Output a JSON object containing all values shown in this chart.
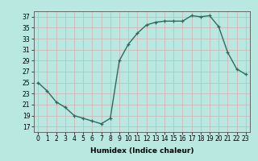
{
  "x": [
    0,
    1,
    2,
    3,
    4,
    5,
    6,
    7,
    8,
    9,
    10,
    11,
    12,
    13,
    14,
    15,
    16,
    17,
    18,
    19,
    20,
    21,
    22,
    23
  ],
  "y": [
    25,
    23.5,
    21.5,
    20.5,
    19.0,
    18.5,
    18.0,
    17.5,
    18.5,
    29,
    32,
    34,
    35.5,
    36,
    36.2,
    36.2,
    36.2,
    37.2,
    37.0,
    37.2,
    35.2,
    30.5,
    27.5,
    26.5
  ],
  "line_color": "#2e6b5e",
  "marker": "+",
  "marker_size": 3,
  "marker_linewidth": 0.9,
  "bg_color": "#b8e8e0",
  "grid_color": "#d0b8b8",
  "xlabel": "Humidex (Indice chaleur)",
  "xlim": [
    -0.5,
    23.5
  ],
  "ylim": [
    16,
    38
  ],
  "yticks": [
    17,
    19,
    21,
    23,
    25,
    27,
    29,
    31,
    33,
    35,
    37
  ],
  "xticks": [
    0,
    1,
    2,
    3,
    4,
    5,
    6,
    7,
    8,
    9,
    10,
    11,
    12,
    13,
    14,
    15,
    16,
    17,
    18,
    19,
    20,
    21,
    22,
    23
  ],
  "xtick_labels": [
    "0",
    "1",
    "2",
    "3",
    "4",
    "5",
    "6",
    "7",
    "8",
    "9",
    "10",
    "11",
    "12",
    "13",
    "14",
    "15",
    "16",
    "17",
    "18",
    "19",
    "20",
    "21",
    "22",
    "23"
  ],
  "tick_fontsize": 5.5,
  "xlabel_fontsize": 6.5,
  "linewidth": 1.0
}
